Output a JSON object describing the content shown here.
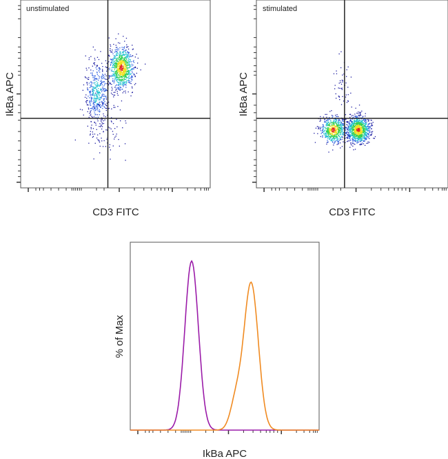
{
  "chart_data": [
    {
      "type": "scatter",
      "title": "unstimulated",
      "xlabel": "CD3 FITC",
      "ylabel": "IkBa APC",
      "xscale": "log",
      "yscale": "log",
      "xlim": [
        0,
        100
      ],
      "ylim": [
        0,
        100
      ],
      "quadrant_gate": {
        "x": 46,
        "y": 37
      },
      "density_colormap": [
        "#1a1aa0",
        "#2f5fe0",
        "#20c0d0",
        "#30d050",
        "#f0e020",
        "#e02020"
      ],
      "populations": [
        {
          "x": 53,
          "y": 64,
          "sx": 3.2,
          "sy": 5.5,
          "n": 900
        },
        {
          "x": 40,
          "y": 51,
          "sx": 3,
          "sy": 8,
          "n": 450
        },
        {
          "x": 44,
          "y": 30,
          "sx": 6,
          "sy": 7,
          "n": 90
        }
      ]
    },
    {
      "type": "scatter",
      "title": "stimulated",
      "xlabel": "CD3 FITC",
      "ylabel": "IkBa APC",
      "xscale": "log",
      "yscale": "log",
      "xlim": [
        0,
        100
      ],
      "ylim": [
        0,
        100
      ],
      "quadrant_gate": {
        "x": 46,
        "y": 37
      },
      "density_colormap": [
        "#1a1aa0",
        "#2f5fe0",
        "#20c0d0",
        "#30d050",
        "#f0e020",
        "#e02020"
      ],
      "populations": [
        {
          "x": 53,
          "y": 31,
          "sx": 3,
          "sy": 3.5,
          "n": 950
        },
        {
          "x": 40,
          "y": 31,
          "sx": 3.2,
          "sy": 3.5,
          "n": 600
        },
        {
          "x": 45,
          "y": 53,
          "sx": 2.5,
          "sy": 9,
          "n": 50
        }
      ]
    },
    {
      "type": "line",
      "title": "",
      "xlabel": "IkBa APC",
      "ylabel": "% of Max",
      "xscale": "log",
      "xlim": [
        0,
        100
      ],
      "ylim": [
        0,
        100
      ],
      "series": [
        {
          "color": "#9a1aa8",
          "peak_x": 32.5,
          "width": 3.6,
          "peak_y": 100
        },
        {
          "color": "#f08a20",
          "peak_x": 64,
          "width": 3.8,
          "peak_y": 87,
          "shoulder_x": 56,
          "shoulder_y": 17
        }
      ]
    }
  ]
}
